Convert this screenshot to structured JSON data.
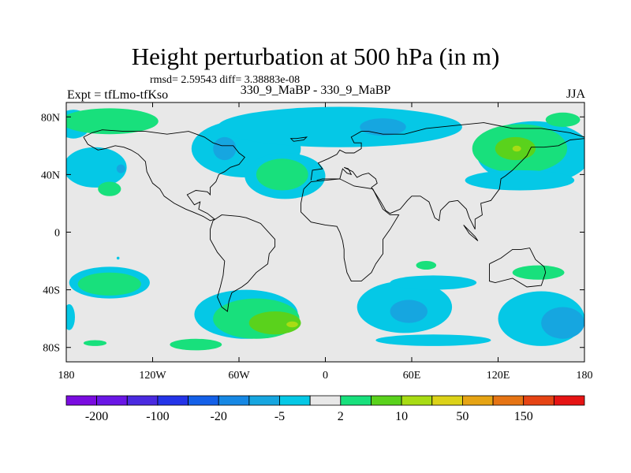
{
  "header": {
    "title": "Height perturbation at 500 hPa (in m)",
    "stats": "rmsd= 2.59543 diff= 3.38883e-08",
    "left_label": "Expt = tfLmo-tfKso",
    "center_label": "330_9_MaBP - 330_9_MaBP",
    "right_label": "JJA"
  },
  "colors": {
    "background_field": "#e8e8e8",
    "coastline": "#000000",
    "level_minus5": "#05c8e6",
    "level_minus20": "#16a6e0",
    "level_plus2": "#18e07c",
    "level_plus10": "#5ad21c",
    "level_plus20": "#a8dc14"
  },
  "chart_data": {
    "type": "contour-map",
    "title": "Height perturbation at 500 hPa (in m)",
    "projection": "cylindrical-equidistant",
    "lon_range": [
      -180,
      180
    ],
    "lat_range": [
      -90,
      90
    ],
    "lon_ticks": [
      {
        "value": -180,
        "label": "180"
      },
      {
        "value": -120,
        "label": "120W"
      },
      {
        "value": -60,
        "label": "60W"
      },
      {
        "value": 0,
        "label": "0"
      },
      {
        "value": 60,
        "label": "60E"
      },
      {
        "value": 120,
        "label": "120E"
      },
      {
        "value": 180,
        "label": "180"
      }
    ],
    "lat_ticks": [
      {
        "value": 80,
        "label": "80N"
      },
      {
        "value": 40,
        "label": "40N"
      },
      {
        "value": 0,
        "label": "0"
      },
      {
        "value": -40,
        "label": "40S"
      },
      {
        "value": -80,
        "label": "80S"
      }
    ],
    "colorbar": {
      "colors": [
        "#7a0ce0",
        "#6a16e6",
        "#4a2ae0",
        "#2434e8",
        "#1460e8",
        "#1688e4",
        "#16a6e0",
        "#05c8e6",
        "#e8e8e8",
        "#18e07c",
        "#5ad21c",
        "#a8dc14",
        "#dcd218",
        "#e6a414",
        "#e67414",
        "#e64414",
        "#e61414"
      ],
      "labels": [
        {
          "after_box": 1,
          "text": "-200"
        },
        {
          "after_box": 3,
          "text": "-100"
        },
        {
          "after_box": 5,
          "text": "-20"
        },
        {
          "after_box": 7,
          "text": "-5"
        },
        {
          "after_box": 9,
          "text": "2"
        },
        {
          "after_box": 11,
          "text": "10"
        },
        {
          "after_box": 13,
          "text": "50"
        },
        {
          "after_box": 15,
          "text": "150"
        }
      ]
    },
    "regions": [
      {
        "level": "-5",
        "lon": -175,
        "lat": 75,
        "rx": 12,
        "ry": 10
      },
      {
        "level": "+2",
        "lon": -150,
        "lat": 77,
        "rx": 34,
        "ry": 9
      },
      {
        "level": "-5",
        "lon": -160,
        "lat": 45,
        "rx": 22,
        "ry": 14
      },
      {
        "level": "-20",
        "lon": -142,
        "lat": 44,
        "rx": 3,
        "ry": 3
      },
      {
        "level": "+2",
        "lon": -150,
        "lat": 30,
        "rx": 8,
        "ry": 5
      },
      {
        "level": "-5",
        "lon": -55,
        "lat": 58,
        "rx": 38,
        "ry": 20
      },
      {
        "level": "-20",
        "lon": -70,
        "lat": 58,
        "rx": 8,
        "ry": 8
      },
      {
        "level": "-5",
        "lon": 10,
        "lat": 73,
        "rx": 85,
        "ry": 14
      },
      {
        "level": "-20",
        "lon": 40,
        "lat": 73,
        "rx": 16,
        "ry": 6
      },
      {
        "level": "-5",
        "lon": -28,
        "lat": 39,
        "rx": 28,
        "ry": 16
      },
      {
        "level": "+2",
        "lon": -30,
        "lat": 40,
        "rx": 18,
        "ry": 11
      },
      {
        "level": "-5",
        "lon": 145,
        "lat": 55,
        "rx": 40,
        "ry": 22
      },
      {
        "level": "+2",
        "lon": 135,
        "lat": 58,
        "rx": 33,
        "ry": 17
      },
      {
        "level": "+10",
        "lon": 132,
        "lat": 58,
        "rx": 14,
        "ry": 8
      },
      {
        "level": "+20",
        "lon": 133,
        "lat": 58,
        "rx": 3,
        "ry": 2
      },
      {
        "level": "+2",
        "lon": 165,
        "lat": 78,
        "rx": 12,
        "ry": 5
      },
      {
        "level": "-5",
        "lon": 135,
        "lat": 36,
        "rx": 38,
        "ry": 7
      },
      {
        "level": "-5",
        "lon": -150,
        "lat": -35,
        "rx": 28,
        "ry": 11
      },
      {
        "level": "+2",
        "lon": -150,
        "lat": -36,
        "rx": 22,
        "ry": 8
      },
      {
        "level": "-5",
        "lon": -178,
        "lat": -59,
        "rx": 4,
        "ry": 9
      },
      {
        "level": "-5",
        "lon": -55,
        "lat": -57,
        "rx": 36,
        "ry": 17
      },
      {
        "level": "+2",
        "lon": -48,
        "lat": -60,
        "rx": 30,
        "ry": 14
      },
      {
        "level": "+10",
        "lon": -35,
        "lat": -63,
        "rx": 18,
        "ry": 8
      },
      {
        "level": "+20",
        "lon": -23,
        "lat": -64,
        "rx": 4,
        "ry": 2
      },
      {
        "level": "+2",
        "lon": -90,
        "lat": -78,
        "rx": 18,
        "ry": 4
      },
      {
        "level": "+2",
        "lon": -160,
        "lat": -77,
        "rx": 8,
        "ry": 2
      },
      {
        "level": "-5",
        "lon": 55,
        "lat": -52,
        "rx": 33,
        "ry": 18
      },
      {
        "level": "-20",
        "lon": 58,
        "lat": -55,
        "rx": 13,
        "ry": 8
      },
      {
        "level": "-5",
        "lon": 150,
        "lat": -60,
        "rx": 30,
        "ry": 19
      },
      {
        "level": "-20",
        "lon": 165,
        "lat": -63,
        "rx": 15,
        "ry": 11
      },
      {
        "level": "+2",
        "lon": 148,
        "lat": -28,
        "rx": 18,
        "ry": 5
      },
      {
        "level": "-5",
        "lon": 75,
        "lat": -75,
        "rx": 40,
        "ry": 4
      },
      {
        "level": "+2",
        "lon": 70,
        "lat": -23,
        "rx": 7,
        "ry": 3
      },
      {
        "level": "-5",
        "lon": 75,
        "lat": -35,
        "rx": 30,
        "ry": 5
      },
      {
        "level": "-5",
        "lon": -144,
        "lat": -18,
        "rx": 1,
        "ry": 1
      }
    ],
    "coastlines": [
      [
        [
          -55,
          10
        ],
        [
          -45,
          6
        ],
        [
          -35,
          -5
        ],
        [
          -35,
          -10
        ],
        [
          -39,
          -15
        ],
        [
          -40,
          -22
        ],
        [
          -48,
          -28
        ],
        [
          -54,
          -35
        ],
        [
          -58,
          -38
        ],
        [
          -65,
          -42
        ],
        [
          -67,
          -48
        ],
        [
          -68,
          -55
        ],
        [
          -72,
          -52
        ],
        [
          -75,
          -45
        ],
        [
          -73,
          -38
        ],
        [
          -71,
          -30
        ],
        [
          -70,
          -20
        ],
        [
          -75,
          -14
        ],
        [
          -80,
          -5
        ],
        [
          -80,
          2
        ],
        [
          -78,
          8
        ],
        [
          -72,
          12
        ],
        [
          -60,
          11
        ],
        [
          -55,
          10
        ]
      ],
      [
        [
          -15,
          30
        ],
        [
          -17,
          20
        ],
        [
          -17,
          14
        ],
        [
          -10,
          7
        ],
        [
          0,
          5
        ],
        [
          8,
          4
        ],
        [
          10,
          0
        ],
        [
          12,
          -6
        ],
        [
          13,
          -12
        ],
        [
          13,
          -18
        ],
        [
          15,
          -28
        ],
        [
          18,
          -34
        ],
        [
          25,
          -34
        ],
        [
          32,
          -28
        ],
        [
          35,
          -22
        ],
        [
          40,
          -15
        ],
        [
          40,
          -5
        ],
        [
          45,
          2
        ],
        [
          51,
          12
        ],
        [
          45,
          12
        ],
        [
          40,
          16
        ],
        [
          33,
          30
        ],
        [
          20,
          32
        ],
        [
          10,
          37
        ],
        [
          0,
          36
        ],
        [
          -10,
          35
        ],
        [
          -15,
          30
        ]
      ],
      [
        [
          -20,
          65
        ],
        [
          -13,
          66
        ],
        [
          -15,
          64
        ],
        [
          -22,
          63
        ],
        [
          -24,
          65
        ],
        [
          -20,
          65
        ]
      ],
      [
        [
          -10,
          36
        ],
        [
          -9,
          43
        ],
        [
          -2,
          44
        ],
        [
          -5,
          48
        ],
        [
          2,
          51
        ],
        [
          8,
          54
        ],
        [
          10,
          57
        ],
        [
          14,
          55
        ],
        [
          20,
          55
        ],
        [
          25,
          58
        ],
        [
          25,
          62
        ],
        [
          20,
          62
        ],
        [
          18,
          66
        ],
        [
          25,
          70
        ],
        [
          30,
          70
        ],
        [
          40,
          68
        ],
        [
          55,
          68
        ],
        [
          70,
          72
        ],
        [
          90,
          74
        ],
        [
          110,
          76
        ],
        [
          130,
          72
        ],
        [
          150,
          72
        ],
        [
          170,
          69
        ],
        [
          180,
          66
        ]
      ],
      [
        [
          26,
          40
        ],
        [
          30,
          41
        ],
        [
          35,
          37
        ],
        [
          36,
          34
        ],
        [
          32,
          31
        ],
        [
          34,
          28
        ],
        [
          38,
          22
        ],
        [
          42,
          15
        ],
        [
          45,
          13
        ],
        [
          52,
          16
        ],
        [
          57,
          22
        ],
        [
          60,
          25
        ],
        [
          66,
          25
        ],
        [
          72,
          21
        ],
        [
          76,
          10
        ],
        [
          79,
          8
        ],
        [
          80,
          15
        ],
        [
          86,
          21
        ],
        [
          92,
          22
        ],
        [
          98,
          16
        ],
        [
          100,
          10
        ],
        [
          104,
          2
        ],
        [
          104,
          9
        ],
        [
          109,
          12
        ],
        [
          108,
          20
        ],
        [
          115,
          22
        ],
        [
          121,
          30
        ],
        [
          122,
          37
        ],
        [
          125,
          39
        ],
        [
          130,
          43
        ],
        [
          135,
          48
        ],
        [
          140,
          53
        ],
        [
          143,
          59
        ],
        [
          152,
          59
        ],
        [
          162,
          60
        ],
        [
          170,
          64
        ],
        [
          180,
          65
        ]
      ],
      [
        [
          -6,
          36
        ],
        [
          -2,
          37
        ],
        [
          3,
          37
        ],
        [
          10,
          37
        ],
        [
          12,
          44
        ],
        [
          15,
          41
        ],
        [
          18,
          40
        ],
        [
          16,
          44
        ],
        [
          13,
          45
        ],
        [
          19,
          42
        ],
        [
          22,
          38
        ],
        [
          26,
          40
        ]
      ],
      [
        [
          96,
          5
        ],
        [
          104,
          -3
        ],
        [
          106,
          -6
        ],
        [
          100,
          -1
        ],
        [
          96,
          5
        ]
      ],
      [
        [
          114,
          -22
        ],
        [
          114,
          -34
        ],
        [
          118,
          -35
        ],
        [
          130,
          -32
        ],
        [
          140,
          -38
        ],
        [
          150,
          -37
        ],
        [
          153,
          -28
        ],
        [
          152,
          -24
        ],
        [
          146,
          -19
        ],
        [
          142,
          -11
        ],
        [
          136,
          -12
        ],
        [
          130,
          -12
        ],
        [
          122,
          -18
        ],
        [
          114,
          -22
        ]
      ],
      [
        [
          -168,
          66
        ],
        [
          -165,
          61
        ],
        [
          -158,
          57
        ],
        [
          -153,
          58
        ],
        [
          -146,
          60
        ],
        [
          -140,
          59
        ],
        [
          -135,
          57
        ],
        [
          -130,
          54
        ],
        [
          -125,
          49
        ],
        [
          -124,
          42
        ],
        [
          -120,
          34
        ],
        [
          -115,
          30
        ],
        [
          -112,
          25
        ],
        [
          -105,
          20
        ],
        [
          -97,
          16
        ],
        [
          -92,
          14
        ],
        [
          -85,
          11
        ],
        [
          -80,
          8
        ],
        [
          -77,
          9
        ],
        [
          -82,
          13
        ],
        [
          -88,
          16
        ],
        [
          -87,
          21
        ],
        [
          -91,
          19
        ],
        [
          -96,
          26
        ],
        [
          -90,
          29
        ],
        [
          -82,
          28
        ],
        [
          -80,
          26
        ],
        [
          -80,
          31
        ],
        [
          -76,
          35
        ],
        [
          -74,
          40
        ],
        [
          -70,
          42
        ],
        [
          -66,
          45
        ],
        [
          -60,
          47
        ],
        [
          -56,
          52
        ],
        [
          -60,
          55
        ],
        [
          -64,
          60
        ],
        [
          -72,
          60
        ],
        [
          -78,
          62
        ],
        [
          -84,
          66
        ],
        [
          -95,
          70
        ],
        [
          -110,
          68
        ],
        [
          -125,
          70
        ],
        [
          -140,
          70
        ],
        [
          -155,
          71
        ],
        [
          -162,
          69
        ],
        [
          -168,
          66
        ]
      ]
    ]
  }
}
